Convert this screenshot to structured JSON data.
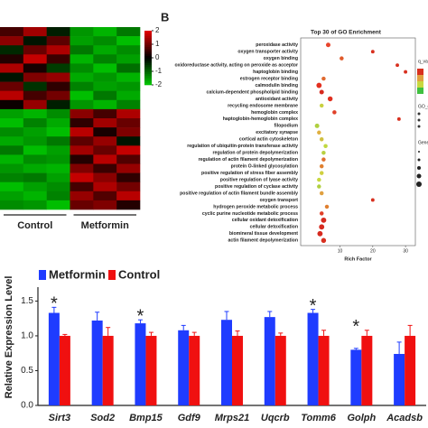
{
  "chart_data": [
    {
      "type": "heatmap",
      "columns": 6,
      "column_groups": [
        "Control",
        "Metformin"
      ],
      "zlim": [
        -2,
        2
      ],
      "zticks": [
        2,
        1,
        0,
        -1,
        -2
      ],
      "z": [
        [
          0.6,
          1.4,
          -0.3,
          -1.5,
          -1.8,
          -1.2
        ],
        [
          1.2,
          -0.2,
          0.8,
          -1.6,
          -1.4,
          -1.9
        ],
        [
          -0.4,
          0.9,
          1.5,
          -1.2,
          -1.7,
          -1.4
        ],
        [
          0.3,
          1.7,
          0.5,
          -1.8,
          -1.3,
          -1.6
        ],
        [
          1.5,
          0.2,
          -0.6,
          -1.4,
          -1.9,
          -1.1
        ],
        [
          -0.2,
          1.1,
          1.3,
          -1.7,
          -1.5,
          -1.8
        ],
        [
          0.9,
          -0.5,
          0.4,
          -1.3,
          -1.6,
          -1.5
        ],
        [
          1.6,
          0.6,
          1.0,
          -1.9,
          -1.2,
          -1.7
        ],
        [
          0.1,
          1.3,
          -0.3,
          -1.5,
          -1.8,
          -1.3
        ],
        [
          -1.6,
          -1.8,
          -1.4,
          1.2,
          0.6,
          1.5
        ],
        [
          -1.9,
          -1.3,
          -1.7,
          0.4,
          1.4,
          0.9
        ],
        [
          -1.4,
          -1.6,
          -1.9,
          1.6,
          0.2,
          1.1
        ],
        [
          -1.7,
          -1.5,
          -1.2,
          0.8,
          1.3,
          -0.2
        ],
        [
          -1.2,
          -1.9,
          -1.6,
          1.4,
          0.9,
          1.7
        ],
        [
          -1.8,
          -1.4,
          -1.5,
          0.3,
          1.6,
          0.7
        ],
        [
          -1.5,
          -1.7,
          -1.8,
          1.1,
          0.5,
          1.3
        ],
        [
          -1.3,
          -1.2,
          -1.6,
          1.7,
          1.2,
          0.4
        ],
        [
          -1.9,
          -1.6,
          -1.4,
          0.6,
          1.5,
          1.0
        ],
        [
          -1.6,
          -1.8,
          -1.3,
          1.3,
          0.7,
          1.6
        ],
        [
          -1.4,
          -1.5,
          -1.9,
          0.9,
          1.1,
          0.3
        ]
      ]
    },
    {
      "type": "dot",
      "panel": "B",
      "title": "Top 30 of GO Enrichment",
      "xlabel": "Rich Factor",
      "xlim": [
        -2,
        33
      ],
      "xticks": [
        10,
        20,
        30
      ],
      "legend_titles": [
        "q_val",
        "GO_d",
        "Gene"
      ],
      "categories": [
        "peroxidase activity",
        "oxygen transporter activity",
        "oxygen binding",
        "oxidoreductase activity, acting on peroxide as acceptor",
        "haptoglobin binding",
        "estrogen receptor binding",
        "calmodulin binding",
        "calcium-dependent phospholipid binding",
        "antioxidant activity",
        "recycling endosome membrane",
        "hemoglobin complex",
        "haptoglobin-hemoglobin complex",
        "filopodium",
        "excitatory synapse",
        "cortical actin cytoskeleton",
        "regulation of ubiquitin-protein transferase activity",
        "regulation of protein depolymerization",
        "regulation of actin filament depolymerization",
        "protein O-linked glycosylation",
        "positive regulation of stress fiber assembly",
        "positive regulation of lyase activity",
        "positive regulation of cyclase activity",
        "positive regulation of actin filament bundle assembly",
        "oxygen transport",
        "hydrogen peroxide metabolic process",
        "cyclic purine nucleotide metabolic process",
        "cellular oxidant detoxification",
        "cellular detoxification",
        "biomineral tissue development",
        "actin filament depolymerization"
      ],
      "values": [
        6.4,
        20,
        10.5,
        27.5,
        30,
        5,
        3.6,
        4.4,
        7,
        4.4,
        8.3,
        28,
        3,
        3.6,
        4.4,
        5.6,
        5,
        5,
        4.4,
        4.4,
        3.6,
        3.6,
        4.4,
        20,
        6,
        4.4,
        5,
        4.4,
        3.9,
        5
      ],
      "sizes": [
        4,
        2,
        3,
        2,
        2,
        3,
        6,
        4,
        5,
        3,
        3,
        2,
        4,
        3,
        3,
        3,
        3,
        3,
        3,
        3,
        3,
        3,
        3,
        2,
        3,
        3,
        6,
        6,
        6,
        5
      ],
      "colors": [
        "#e8452c",
        "#d8301f",
        "#e05a2a",
        "#d8301f",
        "#d8301f",
        "#e06a30",
        "#e33020",
        "#d62a1f",
        "#e03020",
        "#c8d040",
        "#e04028",
        "#d8301f",
        "#b0d040",
        "#e0b040",
        "#d0c040",
        "#c0d840",
        "#b8d040",
        "#e07030",
        "#e08030",
        "#d0d040",
        "#c8d840",
        "#b0d040",
        "#e0a040",
        "#d8301f",
        "#e08030",
        "#e04028",
        "#d62a1f",
        "#d62a1f",
        "#d62a1f",
        "#d83020"
      ]
    },
    {
      "type": "bar",
      "ylabel": "Relative Expression Level",
      "ylim": [
        0,
        1.7
      ],
      "yticks": [
        {
          "value": 0,
          "label": "0.0"
        },
        0.5,
        {
          "value": 1,
          "label": "1.0"
        },
        1.5
      ],
      "categories": [
        "Sirt3",
        "Sod2",
        "Bmp15",
        "Gdf9",
        "Mrps21",
        "Uqcrb",
        "Tomm6",
        "Golph",
        "Acadsb"
      ],
      "series": [
        {
          "name": "Metformin",
          "color": "#1f3cff",
          "values": [
            1.33,
            1.22,
            1.18,
            1.08,
            1.23,
            1.27,
            1.33,
            0.8,
            0.74
          ],
          "errors": [
            0.08,
            0.12,
            0.05,
            0.07,
            0.12,
            0.08,
            0.05,
            0.02,
            0.17
          ]
        },
        {
          "name": "Control",
          "color": "#f01010",
          "values": [
            1,
            1,
            1,
            1,
            1,
            1,
            1,
            1,
            1
          ],
          "errors": [
            0.02,
            0.12,
            0.05,
            0.05,
            0.07,
            0.04,
            0.08,
            0.08,
            0.15
          ]
        }
      ],
      "annotations": [
        {
          "text": "*",
          "category": 0
        },
        {
          "text": "*",
          "category": 2
        },
        {
          "text": "*",
          "category": 6
        },
        {
          "text": "*",
          "category": 7
        }
      ]
    }
  ]
}
